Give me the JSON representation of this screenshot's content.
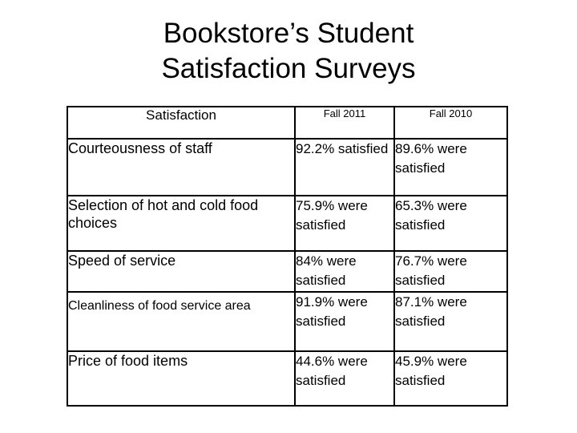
{
  "title": {
    "line1": "Bookstore’s Student",
    "line2": "Satisfaction Surveys"
  },
  "table": {
    "headers": [
      "Satisfaction",
      "Fall 2011",
      "Fall 2010"
    ],
    "rows": [
      {
        "label": "Courteousness of staff",
        "fall2011": "92.2% satisfied",
        "fall2010": "89.6% were satisfied"
      },
      {
        "label": "Selection of hot and cold food choices",
        "fall2011": "75.9% were satisfied",
        "fall2010": "65.3% were satisfied"
      },
      {
        "label": "Speed of service",
        "fall2011": "84% were satisfied",
        "fall2010": "76.7% were satisfied"
      },
      {
        "label": "Cleanliness of food service area",
        "fall2011": "91.9% were satisfied",
        "fall2010": "87.1% were satisfied"
      },
      {
        "label": "Price of food items",
        "fall2011": "44.6% were satisfied",
        "fall2010": "45.9% were satisfied"
      }
    ]
  }
}
